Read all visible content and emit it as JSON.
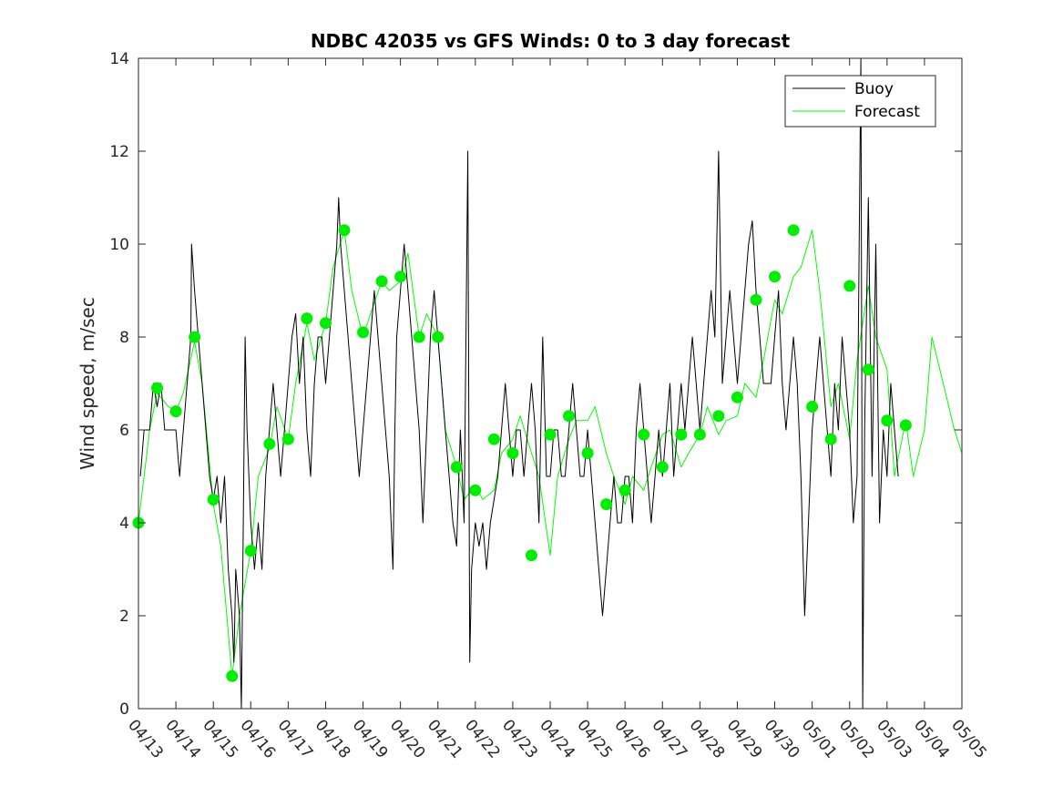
{
  "chart_data": {
    "type": "line",
    "title": "NDBC 42035 vs GFS Winds: 0 to 3 day forecast",
    "xlabel": "",
    "ylabel": "Wind speed, m/sec",
    "ylim": [
      0,
      14
    ],
    "xlim": [
      0,
      22
    ],
    "yticks": [
      0,
      2,
      4,
      6,
      8,
      10,
      12,
      14
    ],
    "xtick_labels": [
      "04/13",
      "04/14",
      "04/15",
      "04/16",
      "04/17",
      "04/18",
      "04/19",
      "04/20",
      "04/21",
      "04/22",
      "04/23",
      "04/24",
      "04/25",
      "04/26",
      "04/27",
      "04/28",
      "04/29",
      "04/30",
      "05/01",
      "05/02",
      "05/03",
      "05/04",
      "05/05"
    ],
    "legend": {
      "position": "top-right",
      "entries": [
        {
          "label": "Buoy",
          "color": "#000000"
        },
        {
          "label": "Forecast",
          "color": "#00ff00"
        }
      ]
    },
    "series": [
      {
        "name": "Buoy",
        "color": "#000000",
        "points": [
          [
            0.05,
            5
          ],
          [
            0.15,
            6
          ],
          [
            0.3,
            6
          ],
          [
            0.4,
            7
          ],
          [
            0.5,
            6.5
          ],
          [
            0.6,
            7
          ],
          [
            0.7,
            6
          ],
          [
            0.8,
            6
          ],
          [
            1.0,
            6
          ],
          [
            1.1,
            5
          ],
          [
            1.2,
            6
          ],
          [
            1.3,
            7
          ],
          [
            1.4,
            8
          ],
          [
            1.42,
            10
          ],
          [
            1.5,
            9
          ],
          [
            1.6,
            8
          ],
          [
            1.7,
            7
          ],
          [
            1.8,
            6
          ],
          [
            1.9,
            5
          ],
          [
            2.0,
            4.5
          ],
          [
            2.1,
            5
          ],
          [
            2.2,
            4
          ],
          [
            2.3,
            5
          ],
          [
            2.4,
            3
          ],
          [
            2.5,
            2
          ],
          [
            2.55,
            1
          ],
          [
            2.6,
            3
          ],
          [
            2.7,
            2
          ],
          [
            2.75,
            0
          ],
          [
            2.8,
            4
          ],
          [
            2.85,
            8
          ],
          [
            2.9,
            6
          ],
          [
            3.0,
            4
          ],
          [
            3.1,
            3
          ],
          [
            3.2,
            4
          ],
          [
            3.3,
            3
          ],
          [
            3.4,
            5
          ],
          [
            3.5,
            6
          ],
          [
            3.6,
            7
          ],
          [
            3.7,
            6
          ],
          [
            3.8,
            5
          ],
          [
            3.9,
            6
          ],
          [
            4.0,
            7
          ],
          [
            4.1,
            8
          ],
          [
            4.2,
            8.5
          ],
          [
            4.3,
            7
          ],
          [
            4.4,
            8
          ],
          [
            4.5,
            6
          ],
          [
            4.6,
            5
          ],
          [
            4.7,
            7
          ],
          [
            4.8,
            8
          ],
          [
            4.9,
            8
          ],
          [
            5.0,
            7
          ],
          [
            5.1,
            8
          ],
          [
            5.2,
            9
          ],
          [
            5.3,
            10
          ],
          [
            5.35,
            11
          ],
          [
            5.4,
            10
          ],
          [
            5.5,
            9
          ],
          [
            5.6,
            8
          ],
          [
            5.7,
            7
          ],
          [
            5.8,
            6
          ],
          [
            5.9,
            5
          ],
          [
            6.0,
            6
          ],
          [
            6.1,
            7
          ],
          [
            6.2,
            8
          ],
          [
            6.3,
            9
          ],
          [
            6.4,
            8
          ],
          [
            6.5,
            7
          ],
          [
            6.6,
            6
          ],
          [
            6.7,
            5
          ],
          [
            6.8,
            3
          ],
          [
            6.85,
            6
          ],
          [
            6.9,
            8
          ],
          [
            7.0,
            9
          ],
          [
            7.1,
            10
          ],
          [
            7.2,
            9
          ],
          [
            7.3,
            8
          ],
          [
            7.4,
            7
          ],
          [
            7.5,
            6
          ],
          [
            7.6,
            4
          ],
          [
            7.7,
            6
          ],
          [
            7.8,
            8
          ],
          [
            7.9,
            9
          ],
          [
            8.0,
            8
          ],
          [
            8.1,
            7
          ],
          [
            8.2,
            6
          ],
          [
            8.3,
            5
          ],
          [
            8.4,
            4
          ],
          [
            8.5,
            3.5
          ],
          [
            8.6,
            6
          ],
          [
            8.7,
            4
          ],
          [
            8.8,
            12
          ],
          [
            8.85,
            1
          ],
          [
            8.9,
            3
          ],
          [
            9.0,
            4
          ],
          [
            9.1,
            3.5
          ],
          [
            9.2,
            4
          ],
          [
            9.3,
            3
          ],
          [
            9.4,
            4
          ],
          [
            9.5,
            4.5
          ],
          [
            9.6,
            5
          ],
          [
            9.7,
            6
          ],
          [
            9.8,
            7
          ],
          [
            9.9,
            6
          ],
          [
            10.0,
            5
          ],
          [
            10.1,
            6
          ],
          [
            10.2,
            6
          ],
          [
            10.3,
            5
          ],
          [
            10.4,
            6
          ],
          [
            10.5,
            7
          ],
          [
            10.6,
            6
          ],
          [
            10.7,
            4
          ],
          [
            10.8,
            8
          ],
          [
            10.9,
            5
          ],
          [
            11.0,
            5
          ],
          [
            11.1,
            6
          ],
          [
            11.2,
            6
          ],
          [
            11.3,
            5
          ],
          [
            11.4,
            5
          ],
          [
            11.5,
            6
          ],
          [
            11.6,
            7
          ],
          [
            11.7,
            6
          ],
          [
            11.8,
            5
          ],
          [
            11.9,
            5
          ],
          [
            12.0,
            6
          ],
          [
            12.1,
            5
          ],
          [
            12.2,
            4
          ],
          [
            12.3,
            3
          ],
          [
            12.4,
            2
          ],
          [
            12.5,
            3
          ],
          [
            12.6,
            4
          ],
          [
            12.7,
            5
          ],
          [
            12.8,
            4
          ],
          [
            12.9,
            4
          ],
          [
            13.0,
            5
          ],
          [
            13.1,
            5
          ],
          [
            13.2,
            4
          ],
          [
            13.3,
            6
          ],
          [
            13.4,
            7
          ],
          [
            13.5,
            6
          ],
          [
            13.6,
            5
          ],
          [
            13.7,
            4
          ],
          [
            13.8,
            5
          ],
          [
            13.9,
            6
          ],
          [
            14.0,
            5
          ],
          [
            14.1,
            6
          ],
          [
            14.2,
            7
          ],
          [
            14.3,
            5
          ],
          [
            14.4,
            6
          ],
          [
            14.5,
            7
          ],
          [
            14.6,
            6
          ],
          [
            14.7,
            7
          ],
          [
            14.8,
            8
          ],
          [
            14.9,
            7
          ],
          [
            15.0,
            6
          ],
          [
            15.1,
            7
          ],
          [
            15.2,
            8
          ],
          [
            15.3,
            9
          ],
          [
            15.4,
            8
          ],
          [
            15.5,
            12
          ],
          [
            15.6,
            7
          ],
          [
            15.7,
            8
          ],
          [
            15.8,
            9
          ],
          [
            15.9,
            8
          ],
          [
            16.0,
            7
          ],
          [
            16.1,
            8
          ],
          [
            16.2,
            9
          ],
          [
            16.3,
            10
          ],
          [
            16.4,
            10.5
          ],
          [
            16.5,
            9
          ],
          [
            16.6,
            8
          ],
          [
            16.7,
            7
          ],
          [
            16.8,
            7
          ],
          [
            16.9,
            7
          ],
          [
            17.0,
            8
          ],
          [
            17.1,
            9
          ],
          [
            17.2,
            7
          ],
          [
            17.3,
            6
          ],
          [
            17.4,
            7
          ],
          [
            17.5,
            8
          ],
          [
            17.6,
            7
          ],
          [
            17.7,
            5
          ],
          [
            17.8,
            2
          ],
          [
            17.9,
            4
          ],
          [
            18.0,
            6
          ],
          [
            18.1,
            7
          ],
          [
            18.2,
            8
          ],
          [
            18.3,
            7
          ],
          [
            18.4,
            6
          ],
          [
            18.5,
            5
          ],
          [
            18.6,
            7
          ],
          [
            18.7,
            6
          ],
          [
            18.8,
            8
          ],
          [
            18.9,
            7
          ],
          [
            19.0,
            6
          ],
          [
            19.1,
            4
          ],
          [
            19.2,
            5
          ],
          [
            19.3,
            14
          ],
          [
            19.35,
            0
          ],
          [
            19.4,
            6
          ],
          [
            19.5,
            11
          ],
          [
            19.6,
            5
          ],
          [
            19.7,
            10
          ],
          [
            19.8,
            4
          ],
          [
            19.9,
            6
          ],
          [
            20.0,
            5
          ],
          [
            20.1,
            7
          ],
          [
            20.2,
            6
          ],
          [
            20.3,
            5
          ]
        ]
      },
      {
        "name": "Forecast",
        "color": "#00ff00",
        "points": [
          [
            0,
            4
          ],
          [
            0.3,
            6
          ],
          [
            0.5,
            6.8
          ],
          [
            0.8,
            6.5
          ],
          [
            1.0,
            6.4
          ],
          [
            1.2,
            6.8
          ],
          [
            1.5,
            7.9
          ],
          [
            1.7,
            7
          ],
          [
            2.0,
            4.4
          ],
          [
            2.2,
            3.5
          ],
          [
            2.5,
            0.7
          ],
          [
            2.7,
            2
          ],
          [
            3.0,
            3.4
          ],
          [
            3.2,
            5
          ],
          [
            3.5,
            5.6
          ],
          [
            3.7,
            6.5
          ],
          [
            4.0,
            5.8
          ],
          [
            4.2,
            7
          ],
          [
            4.5,
            8.3
          ],
          [
            4.7,
            7.5
          ],
          [
            5.0,
            8.3
          ],
          [
            5.2,
            9.5
          ],
          [
            5.5,
            10.3
          ],
          [
            5.7,
            9
          ],
          [
            6.0,
            8
          ],
          [
            6.2,
            8.5
          ],
          [
            6.5,
            9.2
          ],
          [
            6.7,
            9
          ],
          [
            7.0,
            9.2
          ],
          [
            7.2,
            9.8
          ],
          [
            7.5,
            8
          ],
          [
            7.7,
            8.5
          ],
          [
            8.0,
            8
          ],
          [
            8.2,
            6
          ],
          [
            8.5,
            5.2
          ],
          [
            8.7,
            4.5
          ],
          [
            9.0,
            4.8
          ],
          [
            9.2,
            4.5
          ],
          [
            9.5,
            4.7
          ],
          [
            9.7,
            5.5
          ],
          [
            10.0,
            5.8
          ],
          [
            10.2,
            6.3
          ],
          [
            10.5,
            5.5
          ],
          [
            10.7,
            5
          ],
          [
            11.0,
            3.3
          ],
          [
            11.2,
            5
          ],
          [
            11.5,
            5.8
          ],
          [
            11.7,
            6.2
          ],
          [
            12.0,
            6.2
          ],
          [
            12.2,
            6.5
          ],
          [
            12.5,
            5.5
          ],
          [
            12.7,
            5
          ],
          [
            13.0,
            4.4
          ],
          [
            13.2,
            5
          ],
          [
            13.5,
            4.7
          ],
          [
            13.7,
            5.2
          ],
          [
            14.0,
            5.9
          ],
          [
            14.2,
            6
          ],
          [
            14.5,
            5.2
          ],
          [
            14.7,
            5.5
          ],
          [
            15.0,
            5.9
          ],
          [
            15.2,
            6.5
          ],
          [
            15.5,
            5.9
          ],
          [
            15.7,
            6.2
          ],
          [
            16.0,
            6.3
          ],
          [
            16.2,
            7
          ],
          [
            16.5,
            6.7
          ],
          [
            16.7,
            7.5
          ],
          [
            17.0,
            8.8
          ],
          [
            17.2,
            8.5
          ],
          [
            17.5,
            9.3
          ],
          [
            17.7,
            9.5
          ],
          [
            18.0,
            10.3
          ],
          [
            18.2,
            9
          ],
          [
            18.5,
            6.5
          ],
          [
            18.7,
            7
          ],
          [
            19.0,
            5.8
          ],
          [
            19.2,
            7.5
          ],
          [
            19.5,
            9.1
          ],
          [
            19.7,
            8
          ],
          [
            20.0,
            7.3
          ],
          [
            20.2,
            5
          ],
          [
            20.5,
            6.2
          ],
          [
            20.7,
            5
          ],
          [
            21.0,
            6
          ],
          [
            21.2,
            8
          ],
          [
            21.5,
            7
          ],
          [
            21.8,
            6
          ],
          [
            22.0,
            5.5
          ]
        ]
      }
    ],
    "forecast_markers": {
      "color": "#00ee00",
      "x": [
        0,
        0.5,
        1,
        1.5,
        2,
        2.5,
        3,
        3.5,
        4,
        4.5,
        5,
        5.5,
        6,
        6.5,
        7,
        7.5,
        8,
        8.5,
        9,
        9.5,
        10,
        10.5,
        11,
        11.5,
        12,
        12.5,
        13,
        13.5,
        14,
        14.5,
        15,
        15.5,
        16,
        16.5,
        17,
        17.5,
        18,
        18.5,
        19,
        19.5,
        20,
        20.5,
        21
      ],
      "y": [
        4.0,
        6.9,
        6.4,
        8.0,
        4.5,
        0.7,
        3.4,
        5.7,
        5.8,
        8.4,
        8.3,
        10.3,
        8.1,
        9.2,
        9.3,
        8.0,
        8.0,
        5.2,
        4.7,
        5.8,
        5.5,
        3.3,
        5.9,
        6.3,
        5.5,
        4.4,
        4.7,
        5.9,
        5.2,
        5.9,
        5.9,
        6.3,
        6.7,
        8.8,
        9.3,
        10.3,
        6.5,
        5.8,
        9.1,
        7.3,
        6.2,
        6.1,
        null
      ]
    }
  }
}
